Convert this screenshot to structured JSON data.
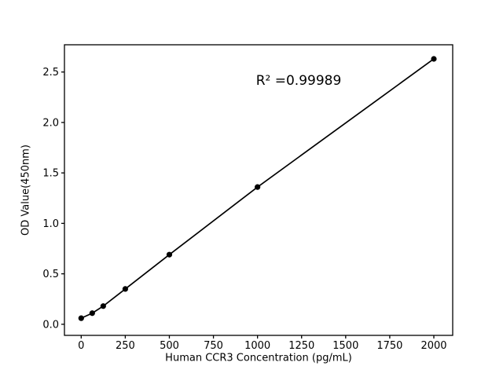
{
  "chart_data": {
    "type": "scatter",
    "title": "",
    "xlabel": "Human CCR3 Concentration (pg/mL)",
    "ylabel": "OD Value(450nm)",
    "annotation": "R² =0.99989",
    "r_squared": 0.99989,
    "series": [
      {
        "name": "standard-curve",
        "x": [
          0,
          62.5,
          125,
          250,
          500,
          1000,
          2000
        ],
        "y": [
          0.06,
          0.11,
          0.18,
          0.35,
          0.69,
          1.36,
          2.63
        ]
      }
    ],
    "line_through_points": true,
    "xticks": [
      0,
      250,
      500,
      750,
      1000,
      1250,
      1500,
      1750,
      2000
    ],
    "xtick_labels": [
      "0",
      "250",
      "500",
      "750",
      "1000",
      "1250",
      "1500",
      "1750",
      "2000"
    ],
    "yticks": [
      0.0,
      0.5,
      1.0,
      1.5,
      2.0,
      2.5
    ],
    "ytick_labels": [
      "0.0",
      "0.5",
      "1.0",
      "1.5",
      "2.0",
      "2.5"
    ],
    "xlim": [
      -95,
      2107
    ],
    "ylim": [
      -0.11,
      2.77
    ],
    "grid": false,
    "legend": false,
    "colors": {
      "marker": "#000000",
      "line": "#000000",
      "axis": "#000000",
      "text": "#000000",
      "background": "#ffffff"
    }
  }
}
